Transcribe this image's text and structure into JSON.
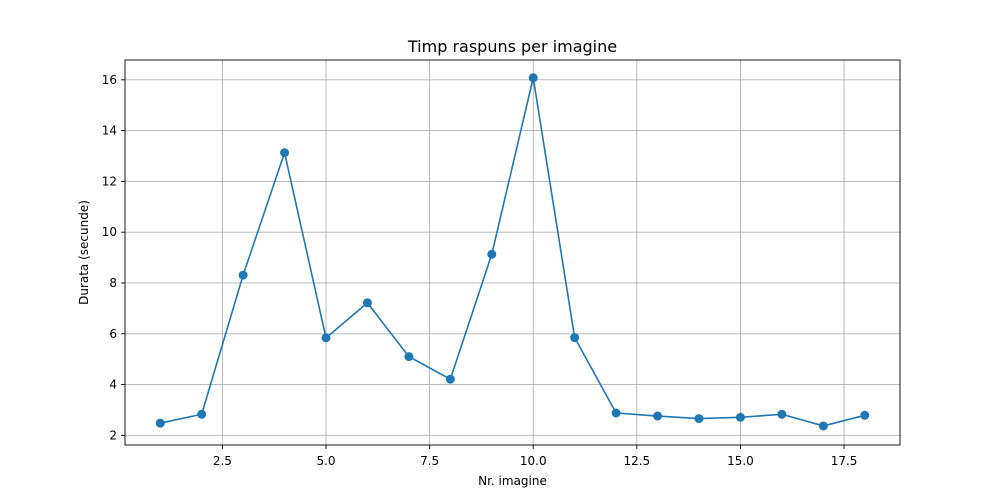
{
  "chart_data": {
    "type": "line",
    "title": "Timp raspuns per imagine",
    "xlabel": "Nr. imagine",
    "ylabel": "Durata (secunde)",
    "xlim": [
      0.15,
      18.85
    ],
    "ylim": [
      1.62,
      16.78
    ],
    "xticks": [
      2.5,
      5.0,
      7.5,
      10.0,
      12.5,
      15.0,
      17.5
    ],
    "xtick_labels": [
      "2.5",
      "5.0",
      "7.5",
      "10.0",
      "12.5",
      "15.0",
      "17.5"
    ],
    "yticks": [
      2,
      4,
      6,
      8,
      10,
      12,
      14,
      16
    ],
    "ytick_labels": [
      "2",
      "4",
      "6",
      "8",
      "10",
      "12",
      "14",
      "16"
    ],
    "grid": true,
    "color": "#1f77b4",
    "marker": "circle",
    "x": [
      1,
      2,
      3,
      4,
      5,
      6,
      7,
      8,
      9,
      10,
      11,
      12,
      13,
      14,
      15,
      16,
      17,
      18
    ],
    "y": [
      2.48,
      2.83,
      8.31,
      13.13,
      5.84,
      7.22,
      5.1,
      4.21,
      9.13,
      16.08,
      5.85,
      2.88,
      2.76,
      2.66,
      2.71,
      2.83,
      2.37,
      2.79
    ]
  }
}
